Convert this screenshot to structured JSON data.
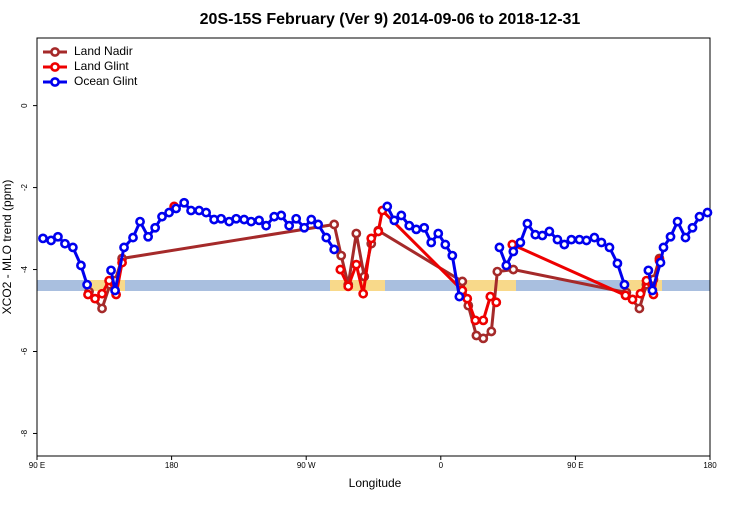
{
  "chart_data": {
    "type": "line",
    "title": "20S-15S February (Ver 9)   2014-09-06 to 2018-12-31",
    "x_label": "Longitude",
    "y_label": "XCO2 - MLO trend (ppm)",
    "xlim": [
      90,
      540
    ],
    "ylim": [
      -8.55,
      1.65
    ],
    "xticks": [
      {
        "value": 90,
        "label": "90 E"
      },
      180,
      {
        "value": 270,
        "label": "90 W"
      },
      {
        "value": 360,
        "label": "0"
      },
      {
        "value": 450,
        "label": "90 E"
      },
      {
        "value": 540,
        "label": "180"
      }
    ],
    "yticks": [
      0,
      -2,
      -4,
      -6,
      -8
    ],
    "legend": "top-left",
    "series": [
      {
        "name": "Land Nadir",
        "color": "#a52a2a",
        "x": [
          124.8,
          133.5,
          138.8,
          142.2,
          146.9,
          288.7,
          293.4,
          298.1,
          303.5,
          308.8,
          313.5,
          318.2,
          374.4,
          378.4,
          383.8,
          388.4,
          393.8,
          397.8,
          408.5,
          484.1,
          492.8,
          497.5,
          502.2,
          506.2
        ],
        "values": [
          -4.54,
          -4.95,
          -4.37,
          -4.27,
          -3.73,
          -2.9,
          -3.66,
          -4.37,
          -3.12,
          -4.17,
          -3.37,
          -3.05,
          -4.29,
          -4.88,
          -5.61,
          -5.68,
          -5.51,
          -4.05,
          -4.0,
          -4.56,
          -4.95,
          -4.37,
          -4.24,
          -3.73
        ]
      },
      {
        "name": "Land Glint",
        "color": "#ee0000",
        "x": [
          124.1,
          128.8,
          133.5,
          138.2,
          142.9,
          146.9,
          160,
          181.7,
          290,
          292.8,
          298.1,
          303.5,
          308.1,
          313.5,
          318.2,
          320.9,
          374.4,
          377.7,
          383.1,
          388.4,
          393.1,
          397.1,
          402,
          407.8,
          483.5,
          488.2,
          493.5,
          497.5,
          502.2,
          506.2
        ],
        "values": [
          -4.61,
          -4.71,
          -4.59,
          -4.27,
          -4.61,
          -3.83,
          null,
          -2.46,
          null,
          -4.0,
          -4.41,
          -3.88,
          -4.59,
          -3.24,
          -3.07,
          -2.56,
          -4.51,
          -4.71,
          -5.24,
          -5.24,
          -4.66,
          -4.8,
          null,
          -3.39,
          -4.63,
          -4.73,
          -4.59,
          -4.27,
          -4.61,
          -3.78
        ]
      },
      {
        "name": "Ocean Glint",
        "color": "#0000ee",
        "x": [
          94,
          99.4,
          104,
          108.7,
          114,
          119.4,
          123.5,
          130,
          139.5,
          142.2,
          148.2,
          154.2,
          158.9,
          164.3,
          169,
          173.6,
          178.3,
          183,
          188.4,
          193,
          198.4,
          203.1,
          208.4,
          213.1,
          218.5,
          223.2,
          228.5,
          233.2,
          238.5,
          243.2,
          248.6,
          253.3,
          258.6,
          263.3,
          268.7,
          273.4,
          278,
          283.4,
          288.7,
          305,
          324.2,
          328.9,
          333.6,
          338.9,
          343.6,
          348.9,
          353.6,
          358.3,
          363,
          367.7,
          372.4,
          385,
          399.2,
          403.8,
          408.5,
          413.2,
          417.9,
          423.2,
          427.9,
          432.6,
          438,
          442.6,
          447.3,
          452.7,
          457.4,
          462.7,
          467.4,
          472.8,
          478.1,
          482.8,
          490,
          498.8,
          501.5,
          506.9,
          508.9,
          513.6,
          518.3,
          523.6,
          528.3,
          533,
          538.3
        ],
        "values": [
          -3.24,
          -3.29,
          -3.2,
          -3.37,
          -3.46,
          -3.9,
          -4.37,
          null,
          -4.02,
          -4.51,
          -3.46,
          -3.22,
          -2.83,
          -3.2,
          -2.98,
          -2.71,
          -2.61,
          -2.51,
          -2.37,
          -2.56,
          -2.56,
          -2.61,
          -2.78,
          -2.76,
          -2.83,
          -2.76,
          -2.78,
          -2.83,
          -2.8,
          -2.93,
          -2.71,
          -2.68,
          -2.93,
          -2.76,
          -2.98,
          -2.78,
          -2.9,
          -3.22,
          -3.51,
          null,
          -2.46,
          -2.8,
          -2.68,
          -2.93,
          -3.02,
          -2.98,
          -3.34,
          -3.12,
          -3.39,
          -3.66,
          -4.66,
          null,
          -3.46,
          -3.9,
          -3.56,
          -3.34,
          -2.88,
          -3.15,
          -3.17,
          -3.07,
          -3.27,
          -3.39,
          -3.27,
          -3.27,
          -3.29,
          -3.22,
          -3.34,
          -3.46,
          -3.85,
          -4.37,
          null,
          -4.02,
          -4.51,
          -3.83,
          -3.46,
          -3.2,
          -2.83,
          -3.22,
          -2.98,
          -2.71,
          -2.61
        ]
      }
    ]
  }
}
